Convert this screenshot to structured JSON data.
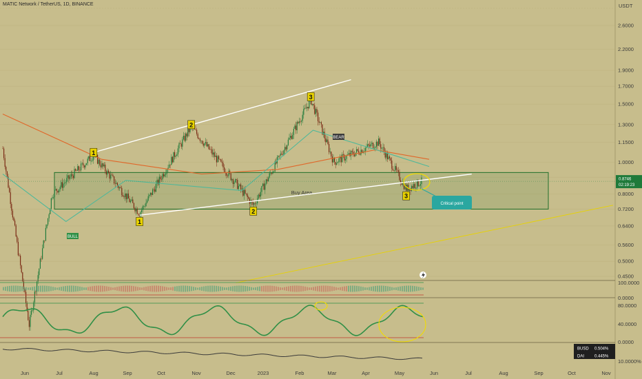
{
  "header": {
    "title": "MATIC Network / TetherUS, 1D, BINANCE",
    "currency": "USDT"
  },
  "price_axis": {
    "ticks": [
      "2.6000",
      "2.2000",
      "1.9000",
      "1.7000",
      "1.5000",
      "1.3000",
      "1.1500",
      "1.0000",
      "0.9000",
      "0.8000",
      "0.7200",
      "0.6400",
      "0.5600",
      "0.5000",
      "0.4500"
    ],
    "current_price": "0.8746",
    "countdown": "02:19:23"
  },
  "time_axis": {
    "ticks": [
      "Jun",
      "Jul",
      "Aug",
      "Sep",
      "Oct",
      "Nov",
      "Dec",
      "2023",
      "Feb",
      "Mar",
      "Apr",
      "May",
      "Jun",
      "Jul",
      "Aug",
      "Sep",
      "Oct",
      "Nov"
    ]
  },
  "annotations": {
    "buy_area": "Buy Area",
    "critical_point": "Critical point",
    "wave_labels": [
      "1",
      "2",
      "3",
      "1",
      "2",
      "3"
    ],
    "bull_tag": "BULL",
    "bear_tag": "BEAR"
  },
  "indicators": {
    "osc1_top": "100.0000",
    "osc1_bottom": "0.0000",
    "osc2_top": "80.0000",
    "osc2_mid": "40.0000",
    "osc2_bottom": "0.0000",
    "dom_bottom": "10.0000%",
    "legend": [
      {
        "name": "BUSD",
        "value": "0.504%",
        "color": "#4caf50"
      },
      {
        "name": "DAI",
        "value": "0.445%",
        "color": "#ffffff"
      }
    ]
  },
  "colors": {
    "background": "#c7bd8c",
    "up_candle": "#1f7a3a",
    "down_candle": "#7a2a14",
    "ma_fast": "#4fb89a",
    "ma_slow": "#e0672a",
    "trendline": "#ffffff",
    "support_line": "#e8d200",
    "buy_area": "#1f6e2a",
    "wave_label": "#e8d200",
    "critical_point": "#2aa7a0"
  },
  "chart_data": {
    "type": "candlestick",
    "title": "MATIC Network / TetherUS, 1D, BINANCE",
    "scale": "log",
    "ylim": [
      0.42,
      3.0
    ],
    "x_range": [
      "2022-05-26",
      "2023-11-08"
    ],
    "key_points": [
      {
        "x": "2022-05-26",
        "y": 1.1
      },
      {
        "x": "2022-06-18",
        "y": 0.32
      },
      {
        "x": "2022-07-08",
        "y": 0.8
      },
      {
        "x": "2022-08-13",
        "y": 1.05
      },
      {
        "x": "2022-09-22",
        "y": 0.7
      },
      {
        "x": "2022-11-06",
        "y": 1.28
      },
      {
        "x": "2022-12-30",
        "y": 0.74
      },
      {
        "x": "2023-02-18",
        "y": 1.55
      },
      {
        "x": "2023-03-10",
        "y": 1.0
      },
      {
        "x": "2023-04-18",
        "y": 1.15
      },
      {
        "x": "2023-05-12",
        "y": 0.83
      },
      {
        "x": "2023-05-26",
        "y": 0.8746
      }
    ],
    "last_close": 0.8746,
    "buy_area": {
      "x": [
        "2022-05-26",
        "2023-06-27"
      ],
      "y": [
        0.72,
        0.93
      ]
    },
    "trendlines": [
      {
        "from": {
          "x": "2022-08-13",
          "y": 1.07
        },
        "to": {
          "x": "2023-03-25",
          "y": 1.78
        }
      },
      {
        "from": {
          "x": "2022-09-22",
          "y": 0.69
        },
        "to": {
          "x": "2023-07-08",
          "y": 0.92
        }
      },
      {
        "from": {
          "x": "2022-12-15",
          "y": 0.43
        },
        "to": {
          "x": "2023-11-08",
          "y": 0.74
        }
      }
    ],
    "moving_averages": [
      {
        "points": [
          {
            "x": "2022-05-26",
            "y": 1.4
          },
          {
            "x": "2022-08-20",
            "y": 1.02
          },
          {
            "x": "2022-11-15",
            "y": 0.92
          },
          {
            "x": "2023-01-20",
            "y": 0.95
          },
          {
            "x": "2023-04-15",
            "y": 1.09
          },
          {
            "x": "2023-06-01",
            "y": 1.02
          }
        ]
      },
      {
        "points": [
          {
            "x": "2022-05-26",
            "y": 0.92
          },
          {
            "x": "2022-07-20",
            "y": 0.66
          },
          {
            "x": "2022-09-10",
            "y": 0.88
          },
          {
            "x": "2022-12-20",
            "y": 0.82
          },
          {
            "x": "2023-02-20",
            "y": 1.25
          },
          {
            "x": "2023-05-01",
            "y": 1.05
          },
          {
            "x": "2023-06-01",
            "y": 0.97
          }
        ]
      }
    ],
    "wave_labels": [
      {
        "label": "1",
        "x": "2022-08-13",
        "y": 1.07
      },
      {
        "label": "2",
        "x": "2022-11-06",
        "y": 1.3
      },
      {
        "label": "3",
        "x": "2023-02-18",
        "y": 1.58
      },
      {
        "label": "1",
        "x": "2022-09-22",
        "y": 0.66
      },
      {
        "label": "2",
        "x": "2022-12-30",
        "y": 0.71
      },
      {
        "label": "3",
        "x": "2023-05-12",
        "y": 0.79
      }
    ],
    "price_ticks": [
      2.6,
      2.2,
      1.9,
      1.7,
      1.5,
      1.3,
      1.15,
      1.0,
      0.9,
      0.8,
      0.72,
      0.64,
      0.56,
      0.5,
      0.45
    ]
  }
}
